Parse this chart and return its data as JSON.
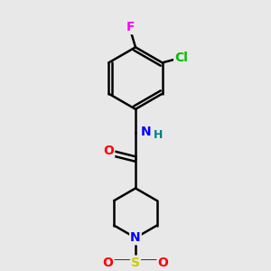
{
  "bg_color": "#e8e8e8",
  "bond_color": "#000000",
  "bond_width": 1.8,
  "atom_colors": {
    "N": "#0000ff",
    "O": "#ff0000",
    "S": "#cccc00",
    "Cl": "#00bb00",
    "F": "#ff00ff",
    "H": "#008080",
    "C": "#000000"
  },
  "font_size": 10,
  "font_size_small": 9
}
